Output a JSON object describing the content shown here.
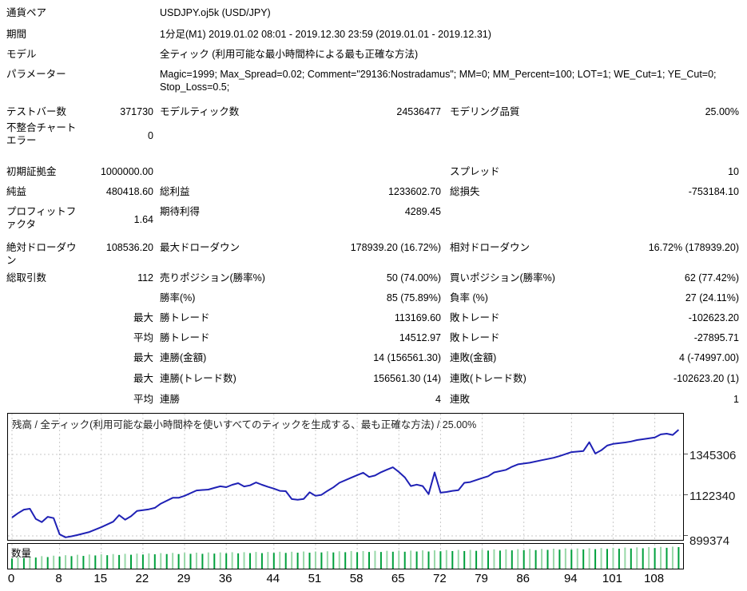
{
  "header": {
    "rows": [
      {
        "label": "通貨ペア",
        "value": "USDJPY.oj5k (USD/JPY)"
      },
      {
        "label": "期間",
        "value": "1分足(M1) 2019.01.02 08:01 - 2019.12.30 23:59 (2019.01.01 - 2019.12.31)"
      },
      {
        "label": "モデル",
        "value": "全ティック (利用可能な最小時間枠による最も正確な方法)"
      },
      {
        "label": "パラメーター",
        "value": "Magic=1999; Max_Spread=0.02; Comment=\"29136:Nostradamus\"; MM=0; MM_Percent=100; LOT=1; WE_Cut=1; YE_Cut=0; Stop_Loss=0.5;"
      }
    ]
  },
  "stats": {
    "rows": [
      {
        "cells": [
          "テストバー数",
          "371730",
          "モデルティック数",
          "24536477",
          "モデリング品質",
          "25.00%"
        ]
      },
      {
        "cells": [
          "不整合チャートエラー",
          "0",
          "",
          "",
          "",
          ""
        ]
      },
      {
        "cells": [
          "初期証拠金",
          "1000000.00",
          "",
          "",
          "スプレッド",
          "10"
        ]
      },
      {
        "cells": [
          "純益",
          "480418.60",
          "総利益",
          "1233602.70",
          "総損失",
          "-753184.10"
        ]
      },
      {
        "cells": [
          "プロフィットファクタ",
          "1.64",
          "期待利得",
          "4289.45",
          "",
          ""
        ]
      },
      {
        "cells": [
          "絶対ドローダウン",
          "108536.20",
          "最大ドローダウン",
          "178939.20 (16.72%)",
          "相対ドローダウン",
          "16.72% (178939.20)"
        ]
      },
      {
        "cells": [
          "総取引数",
          "112",
          "売りポジション(勝率%)",
          "50 (74.00%)",
          "買いポジション(勝率%)",
          "62 (77.42%)"
        ]
      },
      {
        "cells": [
          "",
          "",
          "勝率(%)",
          "85 (75.89%)",
          "負率 (%)",
          "27 (24.11%)"
        ]
      },
      {
        "cells": [
          "",
          "最大",
          "勝トレード",
          "113169.60",
          "敗トレード",
          "-102623.20"
        ]
      },
      {
        "cells": [
          "",
          "平均",
          "勝トレード",
          "14512.97",
          "敗トレード",
          "-27895.71"
        ]
      },
      {
        "cells": [
          "",
          "最大",
          "連勝(金額)",
          "14 (156561.30)",
          "連敗(金額)",
          "4 (-74997.00)"
        ]
      },
      {
        "cells": [
          "",
          "最大",
          "連勝(トレード数)",
          "156561.30 (14)",
          "連敗(トレード数)",
          "-102623.20 (1)"
        ]
      },
      {
        "cells": [
          "",
          "平均",
          "連勝",
          "4",
          "連敗",
          "1"
        ]
      }
    ]
  },
  "chart_data": {
    "type": "line",
    "title": "残高 / 全ティック(利用可能な最小時間枠を使いすべてのティックを生成する、最も正確な方法) / 25.00%",
    "xlabel": "",
    "ylabel": "",
    "x_ticks": [
      0,
      8,
      15,
      22,
      29,
      36,
      44,
      51,
      58,
      65,
      72,
      79,
      86,
      94,
      101,
      108
    ],
    "y_ticks": [
      1345306,
      1122340,
      899374
    ],
    "x_max": 113,
    "line_color": "#1f21b5",
    "grid_color": "#c9c9c9",
    "series": [
      {
        "name": "残高",
        "points": [
          [
            0,
            1000000
          ],
          [
            1,
            1023000
          ],
          [
            2,
            1043000
          ],
          [
            3,
            1048000
          ],
          [
            4,
            992000
          ],
          [
            5,
            975000
          ],
          [
            6,
            1004000
          ],
          [
            7,
            997000
          ],
          [
            8,
            908000
          ],
          [
            9,
            891464
          ],
          [
            10,
            897000
          ],
          [
            11,
            904000
          ],
          [
            13,
            921000
          ],
          [
            15,
            947000
          ],
          [
            17,
            977000
          ],
          [
            18,
            1013000
          ],
          [
            19,
            988000
          ],
          [
            20,
            1007000
          ],
          [
            21,
            1036000
          ],
          [
            23,
            1045000
          ],
          [
            24,
            1053000
          ],
          [
            25,
            1076000
          ],
          [
            27,
            1108000
          ],
          [
            28,
            1108000
          ],
          [
            29,
            1119000
          ],
          [
            31,
            1148000
          ],
          [
            33,
            1153000
          ],
          [
            34,
            1162000
          ],
          [
            35,
            1171000
          ],
          [
            36,
            1166000
          ],
          [
            37,
            1179000
          ],
          [
            38,
            1188000
          ],
          [
            39,
            1170000
          ],
          [
            40,
            1176000
          ],
          [
            41,
            1192000
          ],
          [
            42,
            1179000
          ],
          [
            43,
            1168000
          ],
          [
            44,
            1158000
          ],
          [
            45,
            1146000
          ],
          [
            46,
            1144000
          ],
          [
            47,
            1101000
          ],
          [
            48,
            1097000
          ],
          [
            49,
            1102000
          ],
          [
            50,
            1138000
          ],
          [
            51,
            1119000
          ],
          [
            52,
            1124000
          ],
          [
            53,
            1146000
          ],
          [
            54,
            1165000
          ],
          [
            55,
            1190000
          ],
          [
            57,
            1218000
          ],
          [
            58,
            1232000
          ],
          [
            59,
            1245000
          ],
          [
            60,
            1222000
          ],
          [
            61,
            1230000
          ],
          [
            62,
            1248000
          ],
          [
            63,
            1262000
          ],
          [
            64,
            1275000
          ],
          [
            65,
            1249000
          ],
          [
            66,
            1220000
          ],
          [
            67,
            1172000
          ],
          [
            68,
            1180000
          ],
          [
            69,
            1172000
          ],
          [
            70,
            1128000
          ],
          [
            71,
            1247000
          ],
          [
            72,
            1136000
          ],
          [
            73,
            1140000
          ],
          [
            74,
            1146000
          ],
          [
            75,
            1150000
          ],
          [
            76,
            1190000
          ],
          [
            77,
            1194000
          ],
          [
            79,
            1216000
          ],
          [
            80,
            1226000
          ],
          [
            81,
            1247000
          ],
          [
            83,
            1261000
          ],
          [
            84,
            1278000
          ],
          [
            85,
            1291000
          ],
          [
            87,
            1300000
          ],
          [
            89,
            1314000
          ],
          [
            91,
            1327000
          ],
          [
            92,
            1336000
          ],
          [
            94,
            1358000
          ],
          [
            96,
            1364000
          ],
          [
            97,
            1412000
          ],
          [
            98,
            1350000
          ],
          [
            99,
            1368000
          ],
          [
            100,
            1394000
          ],
          [
            101,
            1403000
          ],
          [
            103,
            1411000
          ],
          [
            104,
            1416000
          ],
          [
            105,
            1424000
          ],
          [
            107,
            1433000
          ],
          [
            108,
            1438000
          ],
          [
            109,
            1455000
          ],
          [
            110,
            1459000
          ],
          [
            111,
            1452000
          ],
          [
            112,
            1480418.6
          ]
        ]
      }
    ],
    "volume": {
      "label": "数量",
      "color_dark": "#00a03c",
      "color_light": "#98d8a8",
      "values": [
        0.44,
        0.5,
        0.46,
        0.52,
        0.48,
        0.54,
        0.5,
        0.56,
        0.52,
        0.58,
        0.54,
        0.6,
        0.55,
        0.61,
        0.57,
        0.62,
        0.58,
        0.63,
        0.59,
        0.64,
        0.6,
        0.65,
        0.61,
        0.66,
        0.62,
        0.67,
        0.63,
        0.68,
        0.63,
        0.68,
        0.64,
        0.69,
        0.64,
        0.7,
        0.65,
        0.7,
        0.66,
        0.71,
        0.66,
        0.71,
        0.67,
        0.72,
        0.67,
        0.72,
        0.68,
        0.73,
        0.68,
        0.73,
        0.69,
        0.74,
        0.69,
        0.74,
        0.7,
        0.75,
        0.7,
        0.75,
        0.71,
        0.76,
        0.71,
        0.76,
        0.72,
        0.77,
        0.72,
        0.77,
        0.73,
        0.78,
        0.73,
        0.78,
        0.74,
        0.79,
        0.74,
        0.79,
        0.75,
        0.8,
        0.76,
        0.81,
        0.76,
        0.81,
        0.77,
        0.82,
        0.78,
        0.83,
        0.78,
        0.83,
        0.79,
        0.84,
        0.8,
        0.85,
        0.8,
        0.85,
        0.81,
        0.86,
        0.82,
        0.87,
        0.82,
        0.87,
        0.83,
        0.88,
        0.84,
        0.89,
        0.85,
        0.9,
        0.86,
        0.91,
        0.87,
        0.92,
        0.88,
        0.93,
        0.89,
        0.94,
        0.9,
        0.95,
        0.93
      ]
    }
  }
}
